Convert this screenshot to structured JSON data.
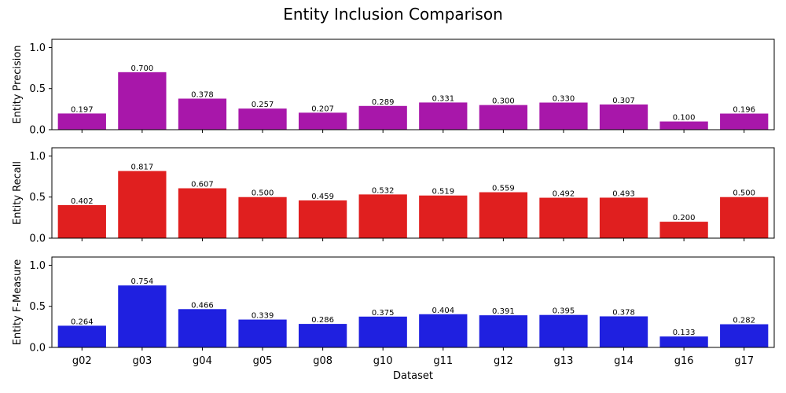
{
  "chart_data": {
    "type": "bar",
    "title": "Entity Inclusion Comparison",
    "xlabel": "Dataset",
    "categories": [
      "g02",
      "g03",
      "g04",
      "g05",
      "g08",
      "g10",
      "g11",
      "g12",
      "g13",
      "g14",
      "g16",
      "g17"
    ],
    "ylim": [
      0,
      1.1
    ],
    "yticks": [
      "0.0",
      "0.5",
      "1.0"
    ],
    "grid": false,
    "panels": [
      {
        "ylabel": "Entity Precision",
        "color": "#a817aa",
        "values": [
          0.197,
          0.7,
          0.378,
          0.257,
          0.207,
          0.289,
          0.331,
          0.3,
          0.33,
          0.307,
          0.1,
          0.196
        ],
        "labels": [
          "0.197",
          "0.700",
          "0.378",
          "0.257",
          "0.207",
          "0.289",
          "0.331",
          "0.300",
          "0.330",
          "0.307",
          "0.100",
          "0.196"
        ]
      },
      {
        "ylabel": "Entity Recall",
        "color": "#e01f1f",
        "values": [
          0.402,
          0.817,
          0.607,
          0.5,
          0.459,
          0.532,
          0.519,
          0.559,
          0.492,
          0.493,
          0.2,
          0.5
        ],
        "labels": [
          "0.402",
          "0.817",
          "0.607",
          "0.500",
          "0.459",
          "0.532",
          "0.519",
          "0.559",
          "0.492",
          "0.493",
          "0.200",
          "0.500"
        ]
      },
      {
        "ylabel": "Entity F-Measure",
        "color": "#1f20e0",
        "values": [
          0.264,
          0.754,
          0.466,
          0.339,
          0.286,
          0.375,
          0.404,
          0.391,
          0.395,
          0.378,
          0.133,
          0.282
        ],
        "labels": [
          "0.264",
          "0.754",
          "0.466",
          "0.339",
          "0.286",
          "0.375",
          "0.404",
          "0.391",
          "0.395",
          "0.378",
          "0.133",
          "0.282"
        ]
      }
    ]
  }
}
